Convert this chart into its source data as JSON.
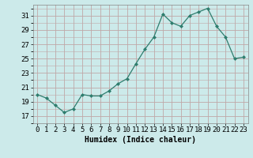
{
  "x": [
    0,
    1,
    2,
    3,
    4,
    5,
    6,
    7,
    8,
    9,
    10,
    11,
    12,
    13,
    14,
    15,
    16,
    17,
    18,
    19,
    20,
    21,
    22,
    23
  ],
  "y": [
    20.0,
    19.5,
    18.5,
    17.5,
    18.0,
    20.0,
    19.8,
    19.8,
    20.5,
    21.5,
    22.2,
    24.3,
    26.3,
    28.0,
    31.2,
    30.0,
    29.5,
    31.0,
    31.5,
    32.0,
    29.5,
    28.0,
    25.0,
    25.2
  ],
  "line_color": "#2e7d6e",
  "marker": "D",
  "marker_size": 2,
  "bg_color": "#cceaea",
  "grid_color": "#c0a8a8",
  "xlabel": "Humidex (Indice chaleur)",
  "xlabel_fontsize": 7,
  "yticks": [
    17,
    19,
    21,
    23,
    25,
    27,
    29,
    31
  ],
  "xtick_labels": [
    "0",
    "1",
    "2",
    "3",
    "4",
    "5",
    "6",
    "7",
    "8",
    "9",
    "10",
    "11",
    "12",
    "13",
    "14",
    "15",
    "16",
    "17",
    "18",
    "19",
    "20",
    "21",
    "22",
    "23"
  ],
  "ylim": [
    16.0,
    32.5
  ],
  "xlim": [
    -0.5,
    23.5
  ],
  "tick_fontsize": 6.5
}
